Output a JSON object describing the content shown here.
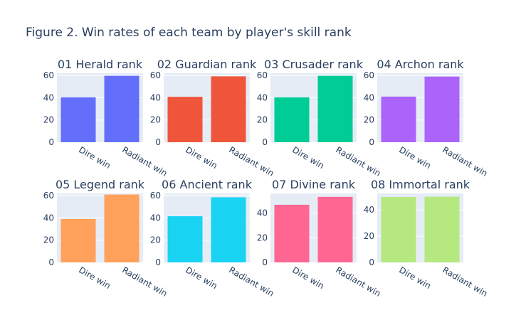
{
  "figure": {
    "title": "Figure 2. Win rates of each team by player's skill rank"
  },
  "chart_data": [
    {
      "type": "bar",
      "title": "01 Herald rank",
      "categories": [
        "Dire win",
        "Radiant win"
      ],
      "values": [
        40.3,
        59.7
      ],
      "ylim": [
        0,
        62
      ],
      "yticks": [
        0,
        20,
        40,
        60
      ],
      "color": "#636efa"
    },
    {
      "type": "bar",
      "title": "02 Guardian rank",
      "categories": [
        "Dire win",
        "Radiant win"
      ],
      "values": [
        40.8,
        59.2
      ],
      "ylim": [
        0,
        62
      ],
      "yticks": [
        0,
        20,
        40,
        60
      ],
      "color": "#ef553b"
    },
    {
      "type": "bar",
      "title": "03 Crusader rank",
      "categories": [
        "Dire win",
        "Radiant win"
      ],
      "values": [
        40.3,
        59.7
      ],
      "ylim": [
        0,
        62
      ],
      "yticks": [
        0,
        20,
        40,
        60
      ],
      "color": "#00cc96"
    },
    {
      "type": "bar",
      "title": "04 Archon rank",
      "categories": [
        "Dire win",
        "Radiant win"
      ],
      "values": [
        41.0,
        59.0
      ],
      "ylim": [
        0,
        62
      ],
      "yticks": [
        0,
        20,
        40,
        60
      ],
      "color": "#ab63fa"
    },
    {
      "type": "bar",
      "title": "05 Legend rank",
      "categories": [
        "Dire win",
        "Radiant win"
      ],
      "values": [
        39.0,
        61.0
      ],
      "ylim": [
        0,
        62
      ],
      "yticks": [
        0,
        20,
        40,
        60
      ],
      "color": "#ffa15a"
    },
    {
      "type": "bar",
      "title": "06 Ancient rank",
      "categories": [
        "Dire win",
        "Radiant win"
      ],
      "values": [
        41.5,
        58.5
      ],
      "ylim": [
        0,
        62
      ],
      "yticks": [
        0,
        20,
        40,
        60
      ],
      "color": "#19d3f3"
    },
    {
      "type": "bar",
      "title": "07 Divine rank",
      "categories": [
        "Dire win",
        "Radiant win"
      ],
      "values": [
        46.8,
        53.2
      ],
      "ylim": [
        0,
        56
      ],
      "yticks": [
        0,
        20,
        40
      ],
      "color": "#ff6692"
    },
    {
      "type": "bar",
      "title": "08 Immortal rank",
      "categories": [
        "Dire win",
        "Radiant win"
      ],
      "values": [
        49.9,
        50.1
      ],
      "ylim": [
        0,
        52.6
      ],
      "yticks": [
        0,
        20,
        40
      ],
      "color": "#b6e880"
    }
  ]
}
